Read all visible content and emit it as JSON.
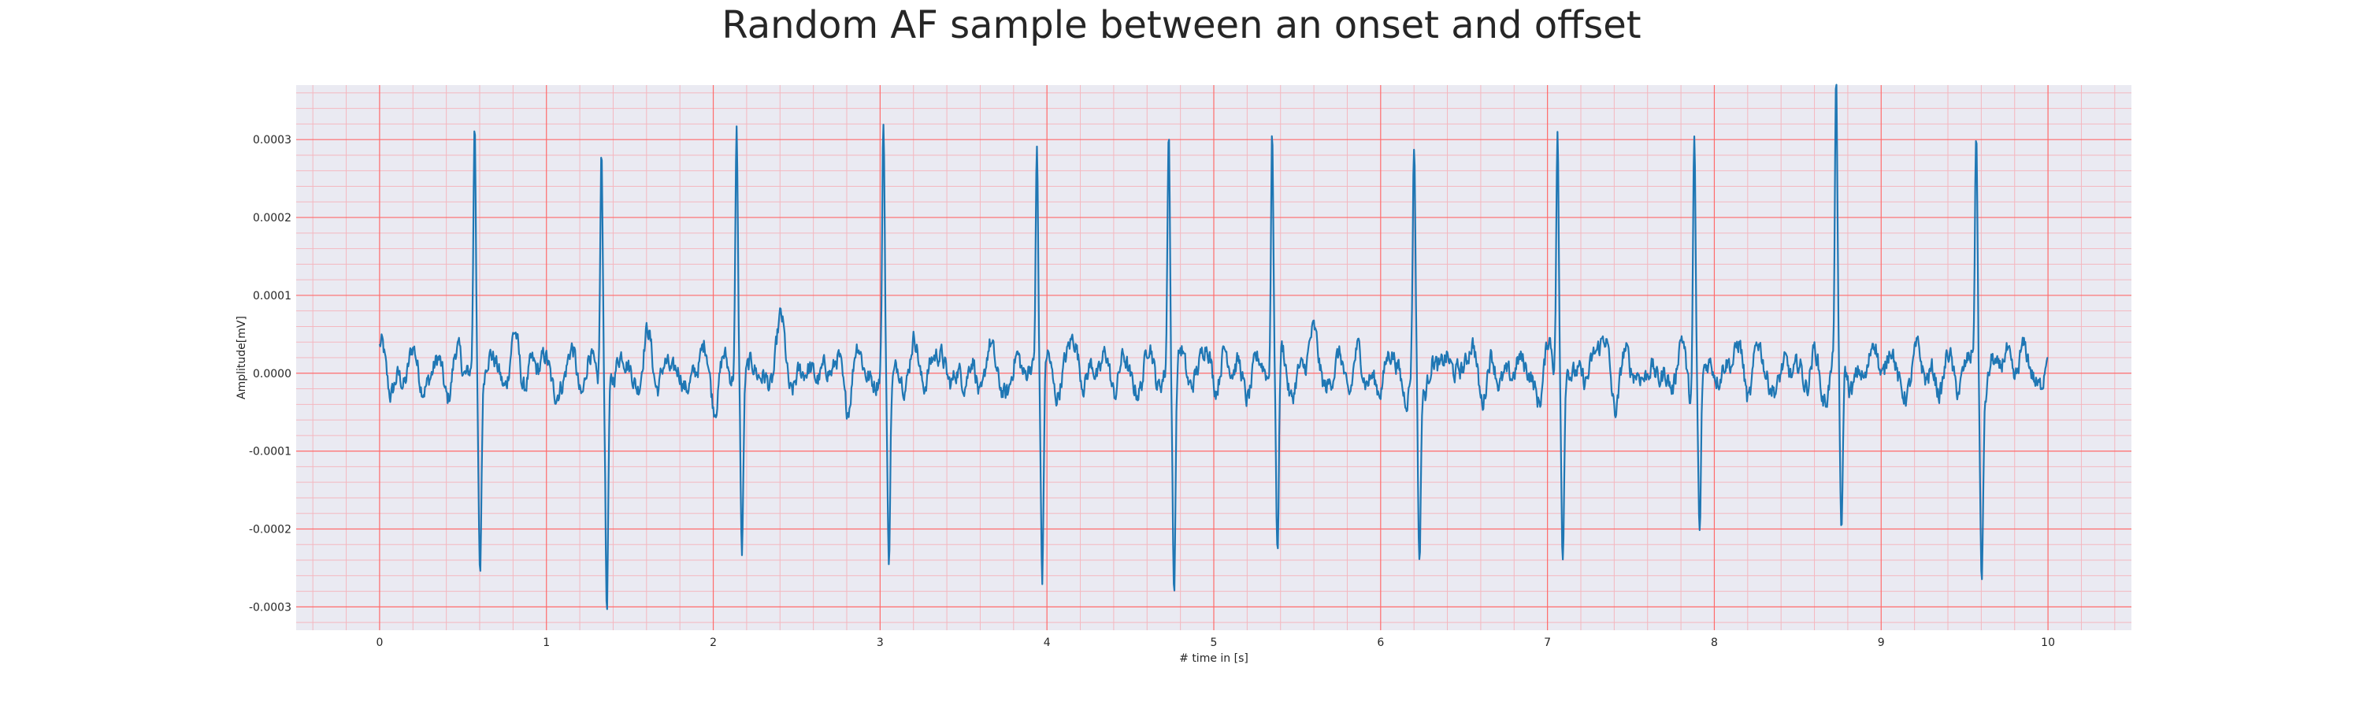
{
  "chart_data": {
    "type": "line",
    "title": "Random AF sample between an onset and offset",
    "xlabel": "# time in [s]",
    "ylabel": "Amplitude[mV]",
    "xlim": [
      -0.5,
      10.5
    ],
    "ylim": [
      -0.00033,
      0.00037
    ],
    "xticks": [
      0,
      1,
      2,
      3,
      4,
      5,
      6,
      7,
      8,
      9,
      10
    ],
    "xtick_labels": [
      "0",
      "1",
      "2",
      "3",
      "4",
      "5",
      "6",
      "7",
      "8",
      "9",
      "10"
    ],
    "yticks": [
      -0.0003,
      -0.0002,
      -0.0001,
      0.0,
      0.0001,
      0.0002,
      0.0003
    ],
    "ytick_labels": [
      "-0.0003",
      "-0.0002",
      "-0.0001",
      "0.0000",
      "0.0001",
      "0.0002",
      "0.0003"
    ],
    "grid": true,
    "series": [
      {
        "color": "#1f77b4",
        "beats": [
          {
            "t": 0.57,
            "peak": 0.00034,
            "trough": -0.000235
          },
          {
            "t": 1.33,
            "peak": 0.00029,
            "trough": -0.000295
          },
          {
            "t": 2.14,
            "peak": 0.000305,
            "trough": -0.00023
          },
          {
            "t": 3.02,
            "peak": 0.000315,
            "trough": -0.000238
          },
          {
            "t": 3.94,
            "peak": 0.000305,
            "trough": -0.000255
          },
          {
            "t": 4.73,
            "peak": 0.000333,
            "trough": -0.000265
          },
          {
            "t": 5.35,
            "peak": 0.000325,
            "trough": -0.000236
          },
          {
            "t": 6.2,
            "peak": 0.00027,
            "trough": -0.000255
          },
          {
            "t": 7.06,
            "peak": 0.00033,
            "trough": -0.000228
          },
          {
            "t": 7.88,
            "peak": 0.00033,
            "trough": -0.000208
          },
          {
            "t": 8.73,
            "peak": 0.000343,
            "trough": -0.00024
          },
          {
            "t": 9.57,
            "peak": 0.0003,
            "trough": -0.000242
          }
        ]
      }
    ]
  },
  "colors": {
    "background": "#eaeaf2",
    "grid_major": "#ff6b6b",
    "grid_minor": "#f4b7bf",
    "line": "#1f77b4"
  }
}
